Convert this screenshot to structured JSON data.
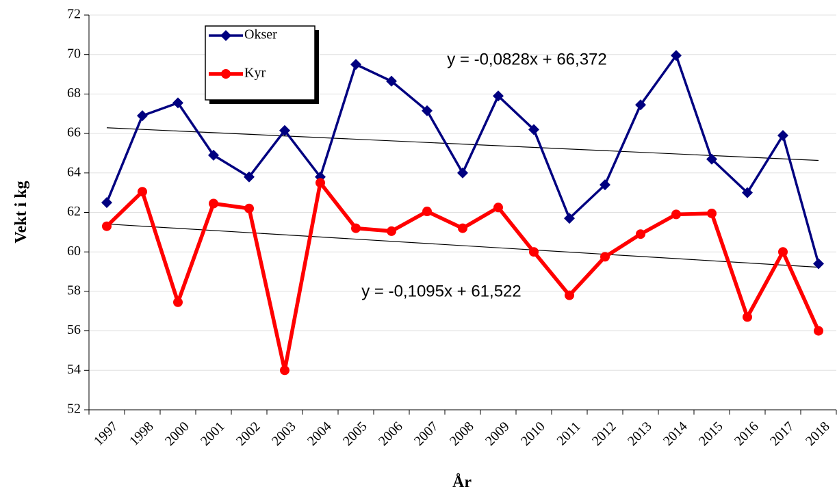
{
  "chart_data": {
    "type": "line",
    "x_label": "År",
    "y_label": "Vekt i kg",
    "categories": [
      "1997",
      "1998",
      "2000",
      "2001",
      "2002",
      "2003",
      "2004",
      "2005",
      "2006",
      "2007",
      "2008",
      "2009",
      "2010",
      "2011",
      "2012",
      "2013",
      "2014",
      "2015",
      "2016",
      "2017",
      "2018"
    ],
    "series": [
      {
        "name": "Okser",
        "color": "#000080",
        "marker": "diamond",
        "values": [
          62.5,
          66.9,
          67.55,
          64.9,
          63.8,
          66.15,
          63.8,
          69.5,
          68.65,
          67.15,
          64.0,
          67.9,
          66.2,
          61.7,
          63.4,
          67.45,
          69.95,
          64.7,
          63.0,
          65.9,
          59.4
        ]
      },
      {
        "name": "Kyr",
        "color": "#ff0000",
        "marker": "circle",
        "values": [
          61.3,
          63.05,
          57.45,
          62.45,
          62.2,
          54.0,
          63.5,
          61.2,
          61.05,
          62.05,
          61.2,
          62.25,
          60.0,
          57.8,
          59.75,
          60.9,
          61.9,
          61.95,
          56.7,
          60.0,
          56.0
        ]
      }
    ],
    "trendlines": [
      {
        "label": "y = -0,0828x + 66,372",
        "slope": -0.0828,
        "intercept": 66.372
      },
      {
        "label": "y = -0,1095x + 61,522",
        "slope": -0.1095,
        "intercept": 61.522
      }
    ],
    "ylim": [
      52,
      72
    ],
    "yticks": [
      52,
      54,
      56,
      58,
      60,
      62,
      64,
      66,
      68,
      70,
      72
    ],
    "grid": true
  }
}
